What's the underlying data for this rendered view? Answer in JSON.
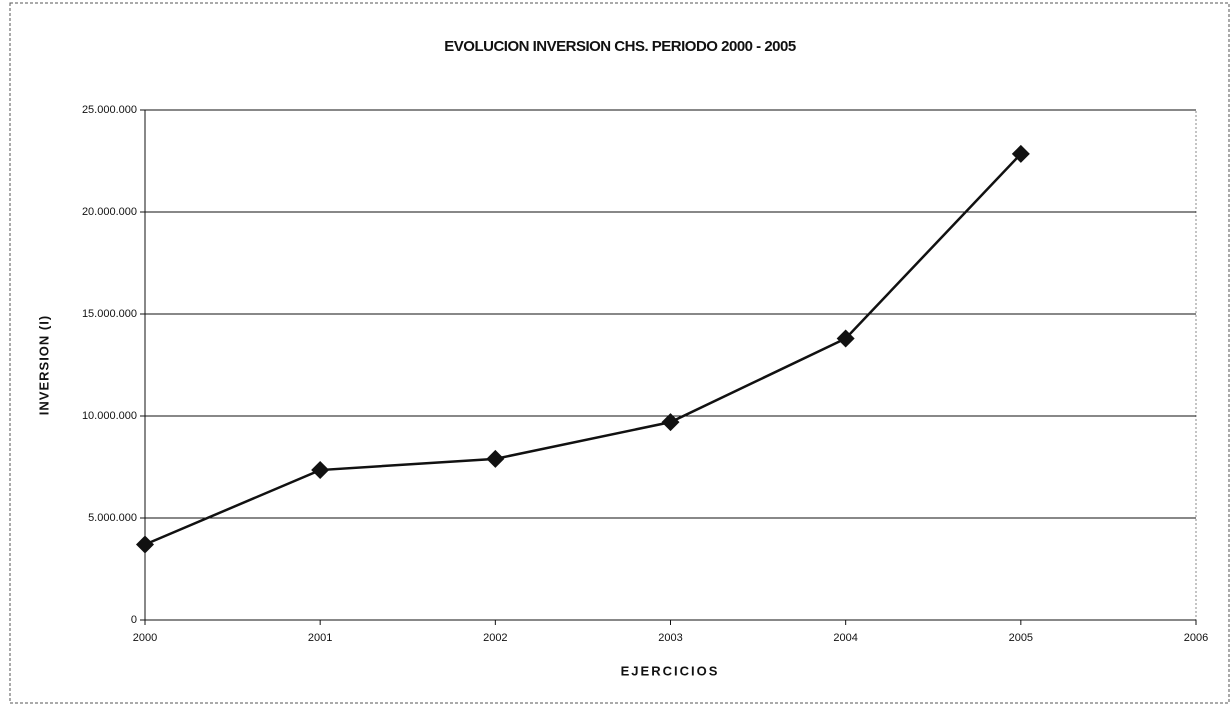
{
  "chart_data": {
    "type": "line",
    "title": "EVOLUCION INVERSION CHS. PERIODO 2000 - 2005",
    "x_label": "EJERCICIOS",
    "y_label": "INVERSION (I)",
    "x": [
      2000,
      2001,
      2002,
      2003,
      2004,
      2005
    ],
    "values": [
      3700000,
      7350000,
      7900000,
      9700000,
      13800000,
      22850000
    ],
    "color": "#111111",
    "marker": "diamond",
    "xlim": [
      2000,
      2006
    ],
    "xticks": [
      2000,
      2001,
      2002,
      2003,
      2004,
      2005,
      2006
    ],
    "ylim": [
      0,
      25000000
    ],
    "yticks": [
      0,
      {
        "value": 5000000,
        "label": "5.000.000"
      },
      {
        "value": 10000000,
        "label": "10.000.000"
      },
      {
        "value": 15000000,
        "label": "15.000.000"
      },
      {
        "value": 20000000,
        "label": "20.000.000"
      },
      {
        "value": 25000000,
        "label": "25.000.000"
      }
    ],
    "grid": true
  }
}
